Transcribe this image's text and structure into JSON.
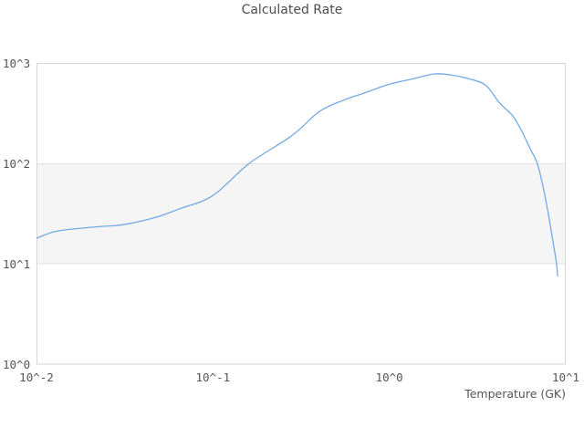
{
  "title": "Calculated Rate",
  "colors": {
    "line": "#74a9e4",
    "band_fill": "#f5f5f5",
    "gridline": "#e2e2e2",
    "plot_border": "#d6d6d6",
    "text": "#555555",
    "title_text": "#4d4d4d",
    "background": "#ffffff"
  },
  "x_axis": {
    "label": "Temperature (GK)",
    "ticks": [
      {
        "label": "10^-2",
        "value": 0.01
      },
      {
        "label": "10^-1",
        "value": 0.1
      },
      {
        "label": "10^0",
        "value": 1
      },
      {
        "label": "10^1",
        "value": 10
      }
    ]
  },
  "y_axis": {
    "label": "",
    "ticks": [
      {
        "label": "10^0",
        "value": 1
      },
      {
        "label": "10^1",
        "value": 10
      },
      {
        "label": "10^2",
        "value": 100
      },
      {
        "label": "10^3",
        "value": 1000
      }
    ]
  },
  "chart_data": {
    "type": "line",
    "title": "Calculated Rate",
    "xlabel": "Temperature (GK)",
    "ylabel": "",
    "x_scale": "log",
    "y_scale": "log",
    "xlim": [
      0.01,
      10
    ],
    "ylim": [
      1,
      1000
    ],
    "grid": "horizontal-decades-only",
    "legend_position": "none",
    "annotations": [
      {
        "type": "horizontal-band",
        "from": 10,
        "to": 100
      }
    ],
    "series": [
      {
        "name": "calculated-rate",
        "x": [
          0.01,
          0.0127,
          0.017,
          0.023,
          0.031,
          0.047,
          0.065,
          0.1,
          0.16,
          0.28,
          0.4,
          0.55,
          0.73,
          1.0,
          1.35,
          1.8,
          2.2,
          2.7,
          3.5,
          4.2,
          5.0,
          5.6,
          6.3,
          6.9,
          7.5,
          8.0,
          8.8,
          9.0
        ],
        "y": [
          18,
          21,
          22.5,
          23.6,
          24.6,
          29,
          35.5,
          48,
          100,
          190,
          330,
          430,
          510,
          620,
          700,
          785,
          770,
          716,
          610,
          405,
          300,
          215,
          140,
          100,
          55,
          30,
          11,
          7.5
        ]
      }
    ]
  }
}
